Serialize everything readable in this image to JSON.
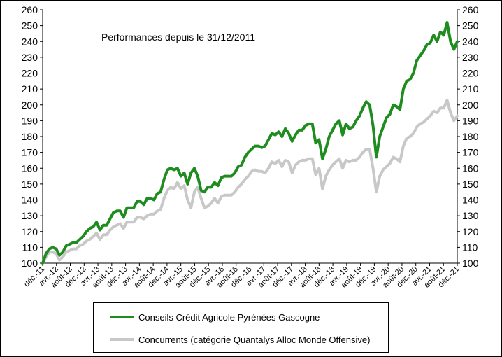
{
  "chart_data": {
    "type": "line",
    "title": "Performances depuis le 31/12/2011",
    "y_ticks": [
      "100",
      "110",
      "120",
      "130",
      "140",
      "150",
      "160",
      "170",
      "180",
      "190",
      "200",
      "210",
      "220",
      "230",
      "240",
      "250",
      "260"
    ],
    "ylim": [
      100,
      260
    ],
    "x_ticks": [
      "déc.-11",
      "avr.-12",
      "août-12",
      "déc.-12",
      "avr.-13",
      "août-13",
      "déc.-13",
      "avr.-14",
      "août-14",
      "déc.-14",
      "avr.-15",
      "août-15",
      "déc.-15",
      "avr.-16",
      "août-16",
      "déc.-16",
      "avr.-17",
      "août-17",
      "déc.-17",
      "avr.-18",
      "août-18",
      "déc.-18",
      "avr.-19",
      "août-19",
      "déc.-19",
      "avr.-20",
      "août-20",
      "déc.-20",
      "avr.-21",
      "août-21",
      "déc.-21"
    ],
    "grid": false,
    "legend_position": "bottom-center",
    "series": [
      {
        "name": "Conseils Crédit Agricole Pyrénées Gascogne",
        "color": "#1e8c1e",
        "values": [
          100,
          106,
          109,
          110,
          109,
          105,
          107,
          111,
          112,
          113,
          113,
          115,
          117,
          120,
          122,
          123,
          126,
          121,
          124,
          124,
          128,
          132,
          133,
          133,
          129,
          135,
          135,
          135,
          139,
          139,
          137,
          141,
          141,
          140,
          144,
          145,
          153,
          159,
          160,
          159,
          160,
          155,
          157,
          150,
          157,
          160,
          155,
          146,
          145,
          148,
          148,
          151,
          149,
          154,
          155,
          155,
          155,
          157,
          161,
          162,
          167,
          170,
          172,
          174,
          174,
          173,
          174,
          178,
          182,
          181,
          183,
          180,
          185,
          182,
          177,
          181,
          184,
          184,
          187,
          188,
          188,
          176,
          178,
          166,
          172,
          180,
          184,
          188,
          190,
          181,
          188,
          185,
          186,
          190,
          193,
          198,
          202,
          200,
          187,
          167,
          180,
          186,
          192,
          194,
          200,
          199,
          197,
          210,
          215,
          216,
          220,
          228,
          231,
          234,
          238,
          239,
          244,
          240,
          246,
          244,
          252,
          240,
          235,
          240
        ]
      },
      {
        "name": "Concurrents (catégorie Quantalys Alloc Monde Offensive)",
        "color": "#c8c8c8",
        "values": [
          100,
          104,
          107,
          107,
          106,
          102,
          104,
          107,
          108,
          109,
          109,
          111,
          112,
          114,
          115,
          117,
          119,
          115,
          118,
          118,
          121,
          123,
          124,
          125,
          122,
          126,
          126,
          126,
          129,
          129,
          128,
          130,
          131,
          131,
          133,
          134,
          141,
          146,
          148,
          147,
          151,
          147,
          149,
          140,
          135,
          145,
          148,
          141,
          135,
          136,
          138,
          141,
          138,
          142,
          143,
          143,
          143,
          145,
          148,
          150,
          153,
          155,
          158,
          159,
          158,
          158,
          157,
          160,
          164,
          163,
          165,
          161,
          165,
          164,
          157,
          162,
          164,
          165,
          165,
          166,
          166,
          156,
          160,
          147,
          155,
          159,
          162,
          164,
          166,
          160,
          165,
          164,
          165,
          165,
          167,
          170,
          172,
          172,
          160,
          145,
          155,
          159,
          161,
          163,
          167,
          166,
          164,
          174,
          179,
          180,
          182,
          186,
          188,
          189,
          191,
          193,
          196,
          195,
          198,
          198,
          203,
          195,
          190,
          193
        ]
      }
    ]
  }
}
